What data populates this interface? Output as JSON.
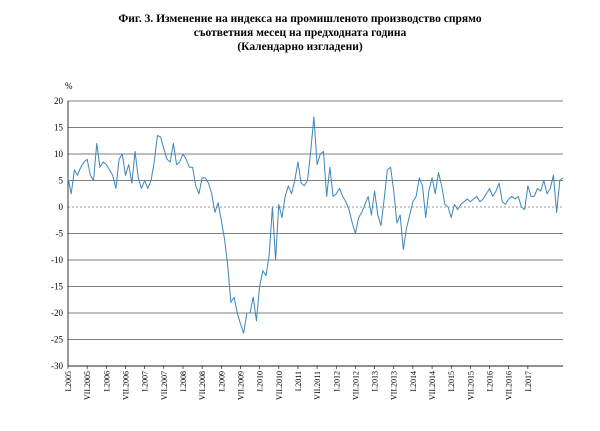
{
  "chart_data": {
    "type": "line",
    "title_lines": [
      "Фиг. 3. Изменение на индекса на промишленото производство спрямо",
      "съответния месец на предходната година",
      "(Календарно изгладени)"
    ],
    "unit_label": "%",
    "ylim": [
      -30,
      20
    ],
    "y_ticks": [
      20,
      15,
      10,
      5,
      0,
      -5,
      -10,
      -15,
      -20,
      -25,
      -30
    ],
    "grid": true,
    "x_labels": [
      "I.2005",
      "VII.2005",
      "I.2006",
      "VII.2006",
      "I.2007",
      "VII.2007",
      "I.2008",
      "VII.2008",
      "I.2009",
      "VII.2009",
      "I.2010",
      "VII.2010",
      "I.2011",
      "VII.2011",
      "I.2012",
      "VII.2012",
      "I.2013",
      "VII.2013",
      "I.2014",
      "VII.2014",
      "I.2015",
      "VII.2015",
      "I.2016",
      "VII.2016",
      "I.2017"
    ],
    "series_color": "#3d86b8",
    "series": [
      {
        "values": [
          5.5,
          2.5,
          7.0,
          6.0,
          7.5,
          8.5,
          9.0,
          6.0,
          5.0,
          12.0,
          7.5,
          8.5,
          8.0,
          7.0,
          6.0,
          3.5,
          9.0,
          10.0,
          6.0,
          8.0,
          4.5,
          10.5,
          5.5,
          3.5,
          5.0,
          3.5,
          5.0,
          8.5,
          13.5,
          13.2,
          11.0,
          9.0,
          8.5,
          12.0,
          8.0,
          8.5,
          10.0,
          9.0,
          7.5,
          7.5,
          4.0,
          2.5,
          5.5,
          5.5,
          4.5,
          2.5,
          -1.0,
          0.8,
          -2.5,
          -6.0,
          -11.0,
          -18.0,
          -17.0,
          -20.0,
          -22.0,
          -23.8,
          -20.0,
          -20.0,
          -17.0,
          -21.5,
          -15.0,
          -12.0,
          -13.0,
          -9.0,
          0.0,
          -10.0,
          0.5,
          -2.0,
          2.0,
          4.0,
          2.5,
          5.0,
          8.5,
          4.5,
          4.0,
          5.0,
          10.5,
          17.0,
          8.0,
          10.0,
          10.5,
          2.0,
          7.5,
          2.0,
          2.5,
          3.5,
          2.0,
          1.0,
          -0.5,
          -3.0,
          -5.0,
          -2.0,
          -1.0,
          0.5,
          2.0,
          -1.5,
          3.0,
          -1.5,
          -3.5,
          1.5,
          7.0,
          7.5,
          3.0,
          -3.0,
          -1.5,
          -8.0,
          -4.0,
          -1.5,
          1.0,
          2.0,
          5.5,
          4.0,
          -2.0,
          3.0,
          5.5,
          2.5,
          6.5,
          4.0,
          0.5,
          0.0,
          -2.0,
          0.5,
          -0.5,
          0.5,
          1.0,
          1.5,
          1.0,
          1.5,
          2.0,
          1.0,
          1.5,
          2.5,
          3.5,
          2.0,
          3.0,
          4.5,
          1.0,
          0.5,
          1.5,
          2.0,
          1.5,
          2.0,
          0.0,
          -0.5,
          4.0,
          2.0,
          2.0,
          3.5,
          3.0,
          5.0,
          2.5,
          3.5,
          6.0,
          -1.0,
          5.0,
          5.5
        ]
      }
    ]
  }
}
